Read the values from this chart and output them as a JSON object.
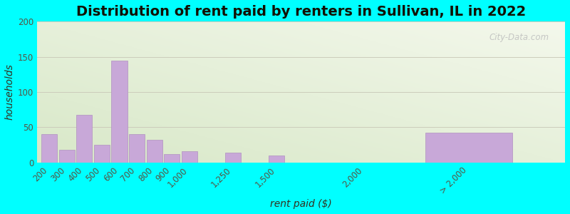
{
  "categories": [
    "200",
    "300",
    "400",
    "500",
    "600",
    "700",
    "800",
    "900",
    "1,000",
    "1,250",
    "1,500",
    "2,000",
    "> 2,000"
  ],
  "x_positions": [
    200,
    300,
    400,
    500,
    600,
    700,
    800,
    900,
    1000,
    1250,
    1500,
    2000,
    2600
  ],
  "bar_widths": [
    90,
    90,
    90,
    90,
    90,
    90,
    90,
    90,
    90,
    90,
    90,
    90,
    500
  ],
  "values": [
    40,
    18,
    68,
    25,
    145,
    40,
    32,
    12,
    16,
    14,
    10,
    0,
    42
  ],
  "bar_color": "#C8A8D8",
  "bar_edge_color": "#B090C0",
  "title": "Distribution of rent paid by renters in Sullivan, IL in 2022",
  "xlabel": "rent paid ($)",
  "ylabel": "households",
  "xlim": [
    130,
    3150
  ],
  "ylim": [
    0,
    200
  ],
  "yticks": [
    0,
    50,
    100,
    150,
    200
  ],
  "title_fontsize": 14,
  "label_fontsize": 10,
  "tick_fontsize": 8.5,
  "bg_outer": "#00FFFF",
  "bg_top_left": "#D8E8C8",
  "bg_bottom_right": "#F4F8EC",
  "grid_color": "#CCCCBB",
  "watermark_text": "City-Data.com"
}
